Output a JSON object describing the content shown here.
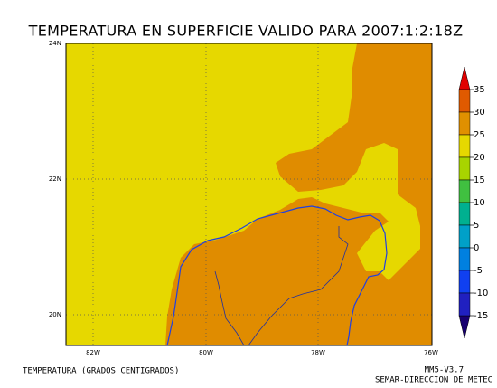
{
  "title": "TEMPERATURA EN SUPERFICIE VALIDO PARA 2007:1:2:18Z",
  "map": {
    "lat_labels": [
      "24N",
      "22N",
      "20N"
    ],
    "lon_labels": [
      "82W",
      "80W",
      "78W",
      "76W"
    ]
  },
  "colorbar": {
    "ticks": [
      35,
      30,
      25,
      20,
      15,
      10,
      5,
      0,
      -5,
      -10,
      -15
    ]
  },
  "footer": {
    "variable": "TEMPERATURA (GRADOS CENTIGRADOS)",
    "model": "MM5-V3.7",
    "source": "SEMAR-DIRECCION DE METEC"
  }
}
